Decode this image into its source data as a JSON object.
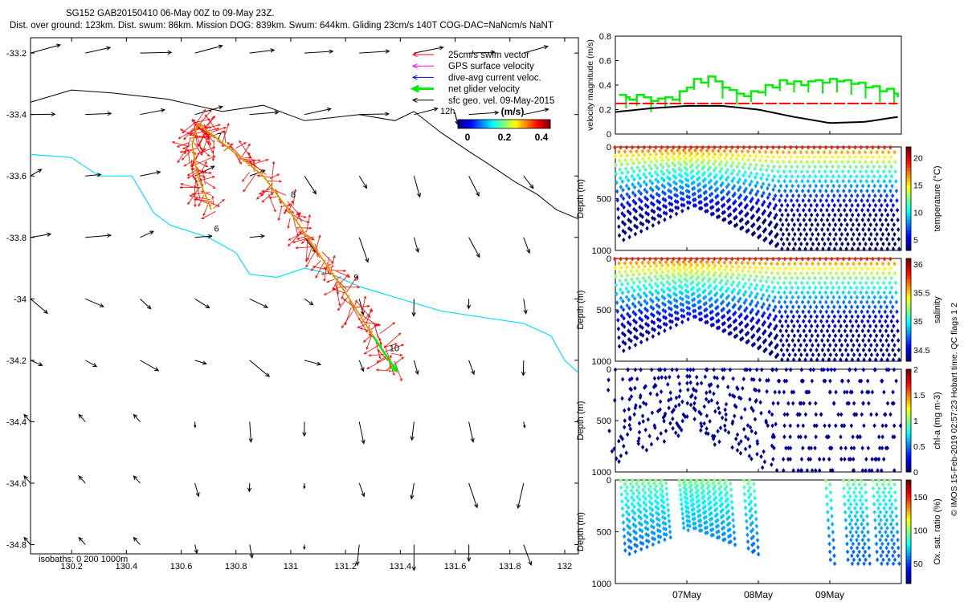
{
  "header": {
    "line1": "SG152 GAB20150410 06-May 00Z to 09-May 23Z.",
    "line2": "Dist. over ground: 123km. Dist. swum: 86km. Mission DOG: 839km. Swum: 644km. Gliding 23cm/s 140T COG-DAC=NaNcm/s NaNT"
  },
  "credit": "© IMOS 15-Feb-2019 02:57:23 Hobart time. QC flags 1  2",
  "map": {
    "isobath_label": "isobaths: 0   200   1000m",
    "scale_arrow_label": "12h",
    "xticks": [
      "130.2",
      "130.4",
      "130.6",
      "130.8",
      "131",
      "131.2",
      "131.4",
      "131.6",
      "131.8",
      "132"
    ],
    "yticks": [
      "-33.2",
      "-33.4",
      "-33.6",
      "-33.8",
      "-34",
      "-34.2",
      "-34.4",
      "-34.6",
      "-34.8"
    ],
    "day_labels": [
      "6",
      "7",
      "8",
      "9",
      "10"
    ],
    "legend": [
      {
        "label": "25cm/s swim vector",
        "color": "#ff0000"
      },
      {
        "label": "GPS surface velocity",
        "color": "#ff00ff"
      },
      {
        "label": "dive-avg current veloc.",
        "color": "#0000ff"
      },
      {
        "label": "net glider velocity",
        "color": "#00ee00"
      },
      {
        "label": "sfc geo. vel. 09-May-2015",
        "color": "#000000"
      }
    ],
    "colorbar": {
      "title": "(m/s)",
      "ticks": [
        "0",
        "0.2",
        "0.4"
      ]
    }
  },
  "chart_data": [
    {
      "type": "line",
      "title": "velocity magnitude",
      "ylabel": "velocity magnitude (m/s)",
      "ylim": [
        0,
        0.8
      ],
      "yticks": [
        "0",
        "0.2",
        "0.4",
        "0.6",
        "0.8"
      ],
      "xlim": [
        6,
        10
      ],
      "series": [
        {
          "name": "net glider velocity",
          "color": "#00ee00",
          "x": [
            6.05,
            6.15,
            6.2,
            6.3,
            6.4,
            6.5,
            6.6,
            6.7,
            6.8,
            6.9,
            7.0,
            7.1,
            7.2,
            7.3,
            7.4,
            7.5,
            7.6,
            7.7,
            7.8,
            7.9,
            8.0,
            8.1,
            8.2,
            8.3,
            8.4,
            8.5,
            8.6,
            8.7,
            8.8,
            8.9,
            9.0,
            9.1,
            9.2,
            9.3,
            9.4,
            9.5,
            9.6,
            9.7,
            9.8,
            9.9,
            9.95
          ],
          "y": [
            0.32,
            0.3,
            0.28,
            0.32,
            0.3,
            0.27,
            0.29,
            0.3,
            0.28,
            0.35,
            0.38,
            0.45,
            0.42,
            0.47,
            0.43,
            0.38,
            0.36,
            0.33,
            0.31,
            0.35,
            0.34,
            0.4,
            0.38,
            0.44,
            0.41,
            0.43,
            0.4,
            0.43,
            0.44,
            0.42,
            0.45,
            0.43,
            0.44,
            0.41,
            0.42,
            0.38,
            0.39,
            0.35,
            0.37,
            0.33,
            0.3
          ]
        },
        {
          "name": "dive-avg current",
          "color": "#ff0000",
          "x": [
            6.0,
            9.95
          ],
          "y": [
            0.25,
            0.25
          ]
        },
        {
          "name": "sfc geo. vel.",
          "color": "#000000",
          "x": [
            6.0,
            6.5,
            7.0,
            7.5,
            8.0,
            8.5,
            9.0,
            9.5,
            9.95
          ],
          "y": [
            0.18,
            0.21,
            0.23,
            0.23,
            0.2,
            0.14,
            0.09,
            0.1,
            0.14
          ]
        }
      ]
    },
    {
      "type": "scatter",
      "title": "temperature",
      "ylabel": "Depth (m)",
      "cbar_label": "temperature (°C)",
      "cbar_ticks": [
        "5",
        "10",
        "15",
        "20"
      ],
      "clim": [
        3,
        22
      ],
      "ylim": [
        1000,
        0
      ],
      "yticks": [
        "0",
        "500",
        "1000"
      ],
      "surface_value": 20,
      "deep_value": 3
    },
    {
      "type": "scatter",
      "title": "salinity",
      "ylabel": "Depth (m)",
      "cbar_label": "salinity",
      "cbar_ticks": [
        "34.5",
        "35",
        "35.5",
        "36"
      ],
      "clim": [
        34.3,
        36.1
      ],
      "ylim": [
        1000,
        0
      ],
      "yticks": [
        "0",
        "500",
        "1000"
      ],
      "surface_value": 35.9,
      "deep_value": 34.35
    },
    {
      "type": "scatter",
      "title": "chl-a",
      "ylabel": "Depth (m)",
      "cbar_label": "chl-a (mg m-3)",
      "cbar_ticks": [
        "0",
        "0.5",
        "1",
        "1.5",
        "2"
      ],
      "clim": [
        0,
        2
      ],
      "ylim": [
        1000,
        0
      ],
      "yticks": [
        "0",
        "500",
        "1000"
      ],
      "surface_value": 0.1,
      "deep_value": 0.05
    },
    {
      "type": "scatter",
      "title": "oxygen",
      "ylabel": "Depth (m)",
      "cbar_label": "Ox. sat. ratio (%)",
      "cbar_ticks": [
        "50",
        "100",
        "150"
      ],
      "clim": [
        20,
        175
      ],
      "ylim": [
        1000,
        0
      ],
      "yticks": [
        "0",
        "500",
        "1000"
      ],
      "surface_value": 100,
      "deep_value": 55
    }
  ],
  "time_axis": {
    "ticks": [
      "07May",
      "08May",
      "09May"
    ]
  }
}
